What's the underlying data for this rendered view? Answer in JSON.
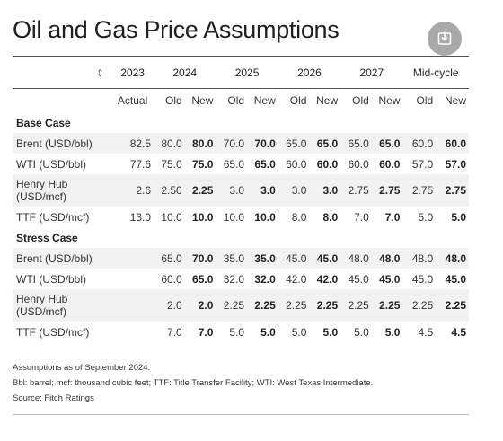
{
  "title": "Oil and Gas Price Assumptions",
  "export_icon": "download-icon",
  "chart_data": {
    "type": "table",
    "columns": [
      {
        "year": "2023",
        "subs": [
          "Actual"
        ]
      },
      {
        "year": "2024",
        "subs": [
          "Old",
          "New"
        ]
      },
      {
        "year": "2025",
        "subs": [
          "Old",
          "New"
        ]
      },
      {
        "year": "2026",
        "subs": [
          "Old",
          "New"
        ]
      },
      {
        "year": "2027",
        "subs": [
          "Old",
          "New"
        ]
      },
      {
        "year": "Mid-cycle",
        "subs": [
          "Old",
          "New"
        ]
      }
    ],
    "sort_glyph": "⇕",
    "sections": [
      {
        "name": "Base Case",
        "rows": [
          {
            "label": "Brent (USD/bbl)",
            "values": [
              "82.5",
              "80.0",
              "80.0",
              "70.0",
              "70.0",
              "65.0",
              "65.0",
              "65.0",
              "65.0",
              "60.0",
              "60.0"
            ]
          },
          {
            "label": "WTI (USD/bbl)",
            "values": [
              "77.6",
              "75.0",
              "75.0",
              "65.0",
              "65.0",
              "60.0",
              "60.0",
              "60.0",
              "60.0",
              "57.0",
              "57.0"
            ]
          },
          {
            "label": "Henry Hub (USD/mcf)",
            "values": [
              "2.6",
              "2.50",
              "2.25",
              "3.0",
              "3.0",
              "3.0",
              "3.0",
              "2.75",
              "2.75",
              "2.75",
              "2.75"
            ]
          },
          {
            "label": "TTF (USD/mcf)",
            "values": [
              "13.0",
              "10.0",
              "10.0",
              "10.0",
              "10.0",
              "8.0",
              "8.0",
              "7.0",
              "7.0",
              "5.0",
              "5.0"
            ]
          }
        ]
      },
      {
        "name": "Stress Case",
        "rows": [
          {
            "label": "Brent (USD/bbl)",
            "values": [
              "",
              "65.0",
              "70.0",
              "35.0",
              "35.0",
              "45.0",
              "45.0",
              "48.0",
              "48.0",
              "48.0",
              "48.0"
            ]
          },
          {
            "label": "WTI (USD/bbl)",
            "values": [
              "",
              "60.0",
              "65.0",
              "32.0",
              "32.0",
              "42.0",
              "42.0",
              "45.0",
              "45.0",
              "45.0",
              "45.0"
            ]
          },
          {
            "label": "Henry Hub (USD/mcf)",
            "values": [
              "",
              "2.0",
              "2.0",
              "2.25",
              "2.25",
              "2.25",
              "2.25",
              "2.25",
              "2.25",
              "2.25",
              "2.25"
            ]
          },
          {
            "label": "TTF (USD/mcf)",
            "values": [
              "",
              "7.0",
              "7.0",
              "5.0",
              "5.0",
              "5.0",
              "5.0",
              "5.0",
              "5.0",
              "4.5",
              "4.5"
            ]
          }
        ]
      }
    ]
  },
  "footnotes": [
    "Assumptions as of September 2024.",
    "Bbl: barrel; mcf: thousand cubic feet; TTF: Title Transfer Facility; WTI: West Texas Intermediate.",
    "Source: Fitch Ratings"
  ]
}
